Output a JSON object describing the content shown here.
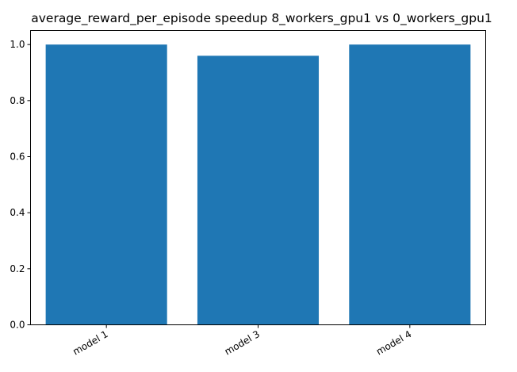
{
  "chart_data": {
    "type": "bar",
    "title": "average_reward_per_episode speedup 8_workers_gpu1 vs 0_workers_gpu1",
    "xlabel": "",
    "ylabel": "",
    "categories": [
      "model 1",
      "model 3",
      "model 4"
    ],
    "values": [
      1.0,
      0.96,
      1.0
    ],
    "ylim": [
      0,
      1.05
    ],
    "yticks": [
      0.0,
      0.2,
      0.4,
      0.6,
      0.8,
      1.0
    ],
    "ytick_labels": [
      "0.0",
      "0.2",
      "0.4",
      "0.6",
      "0.8",
      "1.0"
    ],
    "grid": false,
    "legend": "none",
    "bar_color": "#1f77b4",
    "xtick_rotation_deg": 30
  }
}
